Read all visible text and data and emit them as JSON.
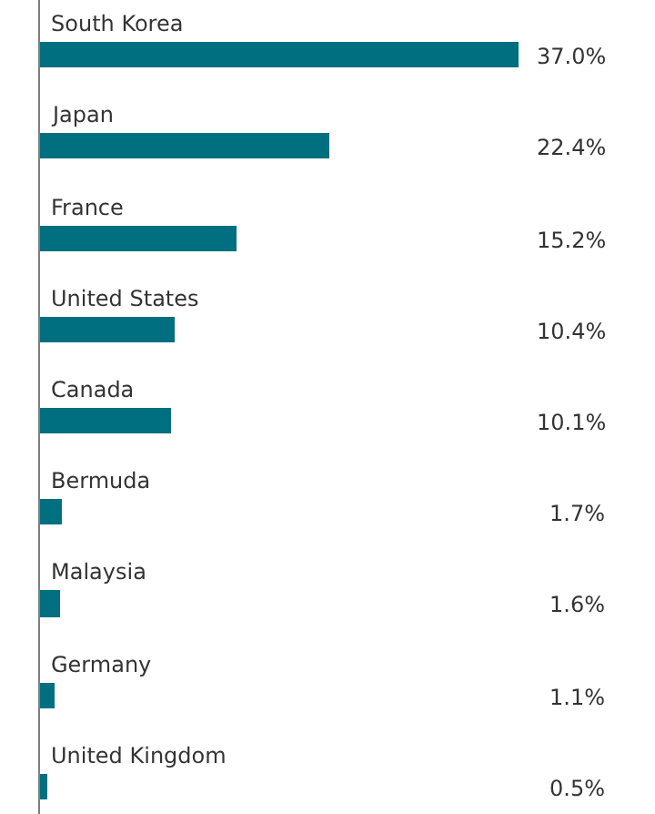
{
  "chart_data": {
    "type": "bar",
    "orientation": "horizontal",
    "categories": [
      "South Korea",
      "Japan",
      "France",
      "United States",
      "Canada",
      "Bermuda",
      "Malaysia",
      "Germany",
      "United Kingdom"
    ],
    "values": [
      37.0,
      22.4,
      15.2,
      10.4,
      10.1,
      1.7,
      1.6,
      1.1,
      0.5
    ],
    "value_labels": [
      "37.0%",
      "22.4%",
      "15.2%",
      "10.4%",
      "10.1%",
      "1.7%",
      "1.6%",
      "1.1%",
      "0.5%"
    ],
    "color": "#006f7f",
    "tick_labels": false,
    "legend": false
  }
}
